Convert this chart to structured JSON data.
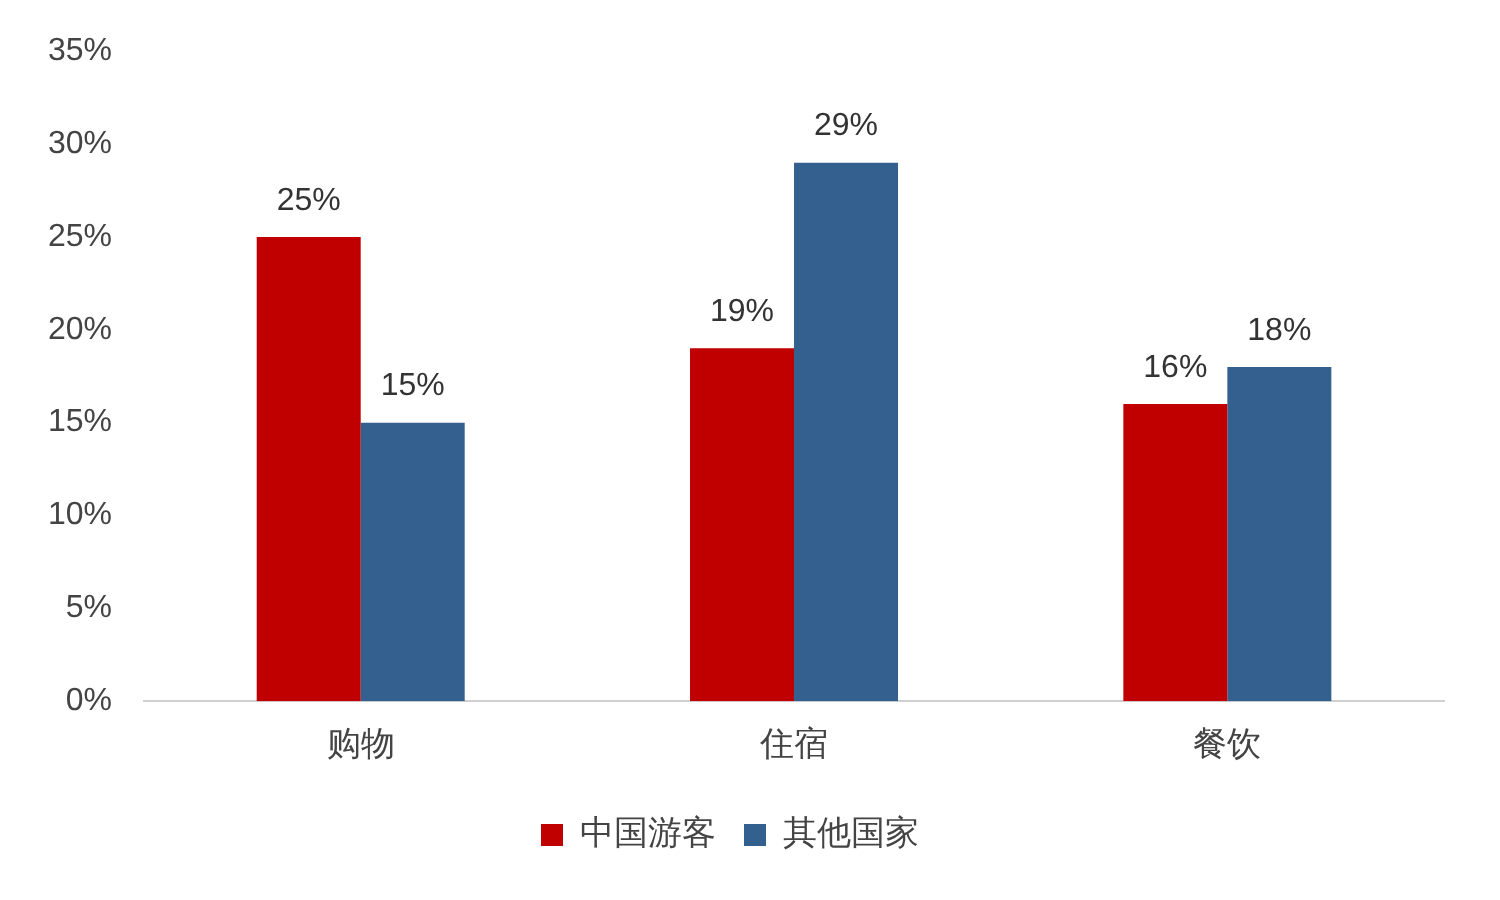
{
  "chart_data": {
    "type": "bar",
    "categories": [
      "购物",
      "住宿",
      "餐饮"
    ],
    "series": [
      {
        "name": "中国游客",
        "color": "#c00000",
        "values": [
          25,
          19,
          16
        ],
        "value_labels": [
          "25%",
          "19%",
          "16%"
        ]
      },
      {
        "name": "其他国家",
        "color": "#34608f",
        "values": [
          15,
          29,
          18
        ],
        "value_labels": [
          "15%",
          "29%",
          "18%"
        ]
      }
    ],
    "ylim": [
      0,
      35
    ],
    "yticks": [
      {
        "value": 0,
        "label": "0%"
      },
      {
        "value": 5,
        "label": "5%"
      },
      {
        "value": 10,
        "label": "10%"
      },
      {
        "value": 15,
        "label": "15%"
      },
      {
        "value": 20,
        "label": "20%"
      },
      {
        "value": 25,
        "label": "25%"
      },
      {
        "value": 30,
        "label": "30%"
      },
      {
        "value": 35,
        "label": "35%"
      }
    ],
    "grid": false,
    "legend": "bottom"
  }
}
